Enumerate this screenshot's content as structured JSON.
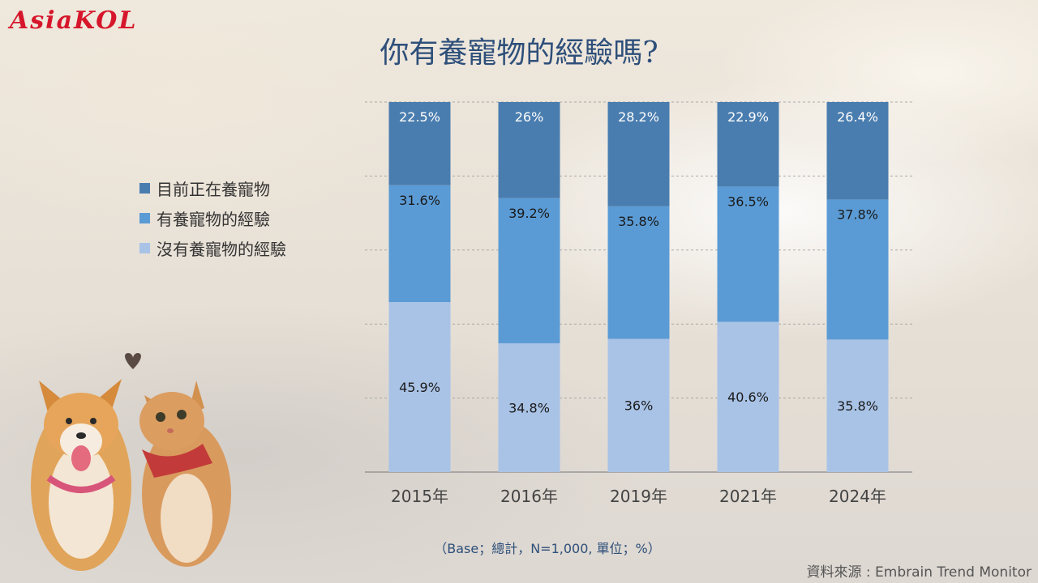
{
  "logo": "AsiaKOL",
  "title": "你有養寵物的經驗嗎?",
  "note": "（Base；總計，N=1,000, 單位；%）",
  "source": "資料來源 : Embrain Trend Monitor",
  "colors": {
    "current": "#4a7daf",
    "had": "#5b9bd5",
    "never": "#a9c3e6",
    "title": "#2e4f7a"
  },
  "chart_data": {
    "type": "bar",
    "stacked": true,
    "categories": [
      "2015年",
      "2016年",
      "2019年",
      "2021年",
      "2024年"
    ],
    "series": [
      {
        "name": "目前正在養寵物",
        "values": [
          22.5,
          26,
          28.2,
          22.9,
          26.4
        ],
        "labels": [
          "22.5%",
          "26%",
          "28.2%",
          "22.9%",
          "26.4%"
        ]
      },
      {
        "name": "有養寵物的經驗",
        "values": [
          31.6,
          39.2,
          35.8,
          36.5,
          37.8
        ],
        "labels": [
          "31.6%",
          "39.2%",
          "35.8%",
          "36.5%",
          "37.8%"
        ]
      },
      {
        "name": "沒有養寵物的經驗",
        "values": [
          45.9,
          34.8,
          36,
          40.6,
          35.8
        ],
        "labels": [
          "45.9%",
          "34.8%",
          "36%",
          "40.6%",
          "35.8%"
        ]
      }
    ],
    "ylim": [
      0,
      100
    ],
    "grid": true,
    "legend": "left"
  }
}
